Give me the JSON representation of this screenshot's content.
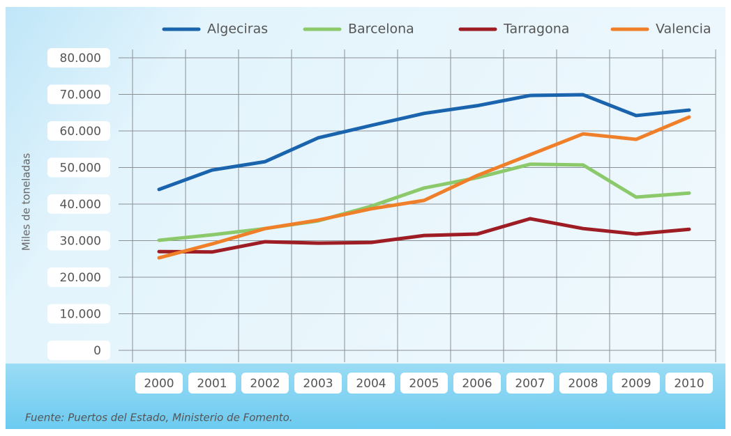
{
  "chart_data": {
    "type": "line",
    "ylabel": "Miles de toneladas",
    "source": "Fuente: Puertos del Estado, Ministerio de Fomento.",
    "categories": [
      "2000",
      "2001",
      "2002",
      "2003",
      "2004",
      "2005",
      "2006",
      "2007",
      "2008",
      "2009",
      "2010"
    ],
    "series": [
      {
        "name": "Algeciras",
        "color": "#1a63ad",
        "values": [
          44000,
          49300,
          51600,
          58100,
          61500,
          64800,
          66900,
          69700,
          69900,
          64200,
          65700
        ]
      },
      {
        "name": "Barcelona",
        "color": "#8cc96b",
        "values": [
          30100,
          31600,
          33300,
          35400,
          39400,
          44400,
          47200,
          50900,
          50700,
          41900,
          43000
        ]
      },
      {
        "name": "Tarragona",
        "color": "#9e1c24",
        "values": [
          27000,
          26900,
          29700,
          29300,
          29500,
          31400,
          31800,
          36000,
          33300,
          31800,
          33100
        ]
      },
      {
        "name": "Valencia",
        "color": "#f07f2a",
        "values": [
          25300,
          29100,
          33300,
          35600,
          38700,
          41000,
          47800,
          53500,
          59200,
          57700,
          63800
        ]
      }
    ],
    "ylim": [
      0,
      80000
    ],
    "yticks": [
      {
        "value": 0,
        "label": "0"
      },
      {
        "value": 10000,
        "label": "10.000"
      },
      {
        "value": 20000,
        "label": "20.000"
      },
      {
        "value": 30000,
        "label": "30.000"
      },
      {
        "value": 40000,
        "label": "40.000"
      },
      {
        "value": 50000,
        "label": "50.000"
      },
      {
        "value": 60000,
        "label": "60.000"
      },
      {
        "value": 70000,
        "label": "70.000"
      },
      {
        "value": 80000,
        "label": "80.000"
      }
    ],
    "grid": true
  }
}
